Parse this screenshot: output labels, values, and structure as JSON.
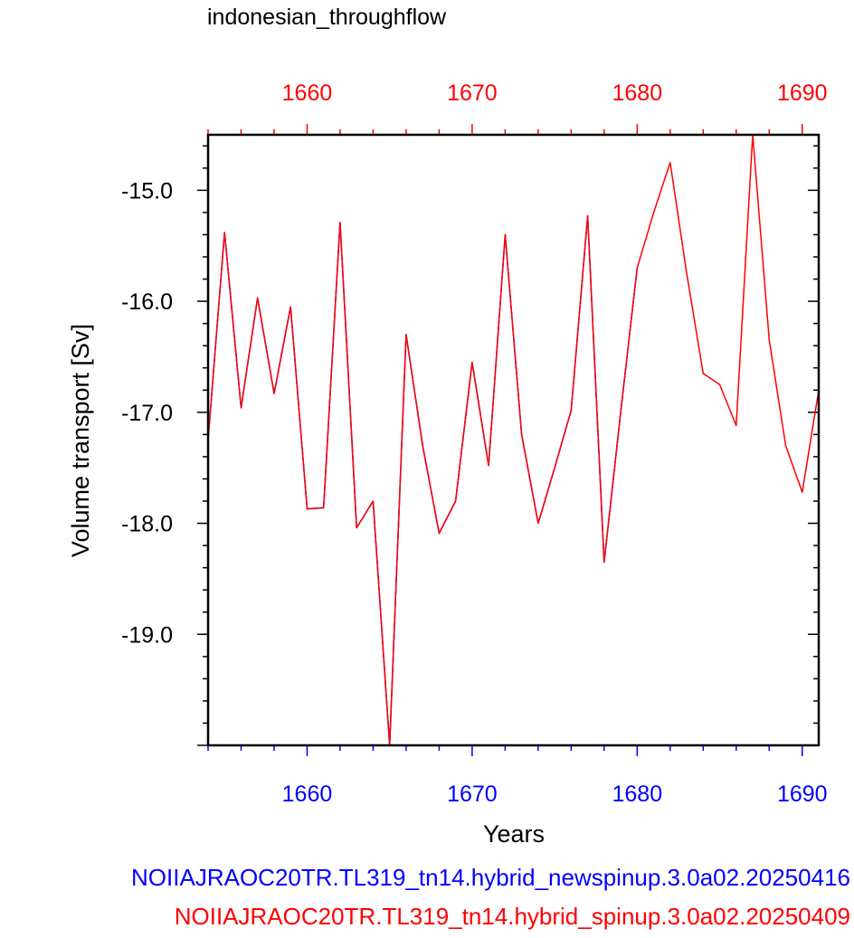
{
  "chart_data": {
    "type": "line",
    "title": "indonesian_throughflow",
    "xlabel": "Years",
    "ylabel": "Volume transport [Sv]",
    "xlim": [
      1654,
      1691
    ],
    "ylim": [
      -20,
      -14.5
    ],
    "x_ticks": [
      1660,
      1670,
      1680,
      1690
    ],
    "x_tick_labels": [
      "1660",
      "1670",
      "1680",
      "1690"
    ],
    "y_ticks": [
      -15,
      -16,
      -17,
      -18,
      -19
    ],
    "y_tick_labels": [
      "-15.0",
      "-16.0",
      "-17.0",
      "-18.0",
      "-19.0"
    ],
    "bottom_axis_color": "#0000ff",
    "top_axis_color": "#ff0000",
    "series": [
      {
        "name": "NOIIAJRAOC20TR.TL319_tn14.hybrid_newspinup.3.0a02.20250416",
        "color": "#0000ff",
        "x": [
          1654,
          1655,
          1656,
          1657,
          1658,
          1659,
          1660,
          1661,
          1662,
          1663,
          1664,
          1665,
          1666,
          1667,
          1668,
          1669,
          1670,
          1671,
          1672,
          1673,
          1674,
          1675,
          1676,
          1677,
          1678,
          1679,
          1680
        ],
        "values": [
          -17.25,
          -15.38,
          -16.96,
          -15.97,
          -16.83,
          -16.05,
          -17.87,
          -17.86,
          -15.29,
          -18.04,
          -17.8,
          -20.0,
          -16.3,
          -17.3,
          -18.09,
          -17.8,
          -16.55,
          -17.48,
          -15.4,
          -17.2,
          -18.0,
          -17.5,
          -16.98,
          -15.23,
          -18.35,
          -17.0,
          -15.7
        ]
      },
      {
        "name": "NOIIAJRAOC20TR.TL319_tn14.hybrid_spinup.3.0a02.20250409",
        "color": "#ff0000",
        "x": [
          1654,
          1655,
          1656,
          1657,
          1658,
          1659,
          1660,
          1661,
          1662,
          1663,
          1664,
          1665,
          1666,
          1667,
          1668,
          1669,
          1670,
          1671,
          1672,
          1673,
          1674,
          1675,
          1676,
          1677,
          1678,
          1679,
          1680,
          1681,
          1682,
          1683,
          1684,
          1685,
          1686,
          1687,
          1688,
          1689,
          1690,
          1691
        ],
        "values": [
          -17.25,
          -15.38,
          -16.96,
          -15.97,
          -16.83,
          -16.05,
          -17.87,
          -17.86,
          -15.29,
          -18.04,
          -17.8,
          -20.0,
          -16.3,
          -17.3,
          -18.09,
          -17.8,
          -16.55,
          -17.48,
          -15.4,
          -17.2,
          -18.0,
          -17.5,
          -16.98,
          -15.23,
          -18.35,
          -17.0,
          -15.7,
          -15.2,
          -14.75,
          -15.75,
          -16.65,
          -16.75,
          -17.12,
          -14.5,
          -16.35,
          -17.3,
          -17.72,
          -16.8
        ]
      }
    ]
  }
}
